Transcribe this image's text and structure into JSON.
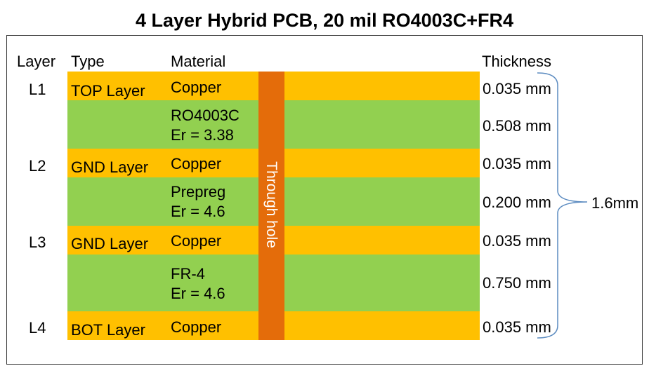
{
  "title": "4 Layer Hybrid PCB, 20 mil RO4003C+FR4",
  "headers": {
    "layer": "Layer",
    "type": "Type",
    "material": "Material",
    "thickness": "Thickness"
  },
  "via_label": "Through hole",
  "total_thickness": "1.6mm",
  "colors": {
    "copper": "#ffc000",
    "dielectric": "#92d050",
    "via": "#e46c0a",
    "brace": "#5b8bc0"
  },
  "layers": [
    {
      "layer": "L1",
      "type": "TOP Layer",
      "material": "Copper",
      "thickness": "0.035 mm"
    },
    {
      "material_line1": "RO4003C",
      "material_line2": "Er = 3.38",
      "thickness": "0.508 mm"
    },
    {
      "layer": "L2",
      "type": "GND Layer",
      "material": "Copper",
      "thickness": "0.035 mm"
    },
    {
      "material_line1": "Prepreg",
      "material_line2": "Er = 4.6",
      "thickness": "0.200 mm"
    },
    {
      "layer": "L3",
      "type": "GND Layer",
      "material": "Copper",
      "thickness": "0.035 mm"
    },
    {
      "material_line1": "FR-4",
      "material_line2": "Er = 4.6",
      "thickness": "0.750 mm"
    },
    {
      "layer": "L4",
      "type": "BOT Layer",
      "material": "Copper",
      "thickness": "0.035 mm"
    }
  ]
}
